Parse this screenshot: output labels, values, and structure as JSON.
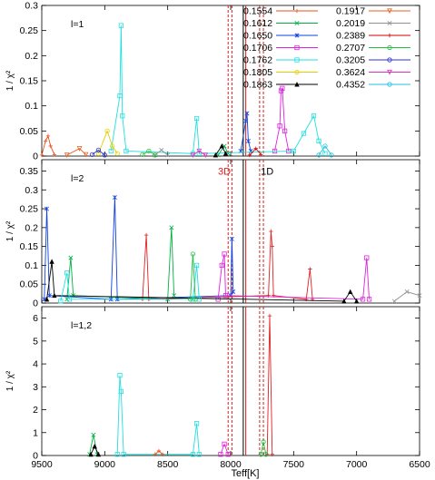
{
  "chart_data": [
    {
      "type": "line",
      "panel_label": "l=1",
      "ylabel": "1 / χ²",
      "ylim": [
        0,
        0.3
      ],
      "yticks": [
        "0",
        "0.05",
        "0.1",
        "0.15",
        "0.2",
        "0.25",
        "0.3"
      ],
      "xlim": [
        9500,
        6500
      ],
      "grid": false,
      "legend": "top-right",
      "series": [
        {
          "name": "0.1554",
          "color": "#e8501e",
          "marker": "+",
          "points": [
            [
              9500,
              0.002
            ],
            [
              9470,
              0.03
            ],
            [
              9450,
              0.04
            ],
            [
              9430,
              0.02
            ],
            [
              9400,
              0.003
            ]
          ]
        },
        {
          "name": "0.1612",
          "color": "#00b040",
          "marker": "x",
          "points": [
            [
              8100,
              0.002
            ],
            [
              8050,
              0.02
            ],
            [
              8020,
              0.005
            ]
          ]
        },
        {
          "name": "0.1650",
          "color": "#1040e0",
          "marker": "*",
          "points": [
            [
              7920,
              0.01
            ],
            [
              7880,
              0.07
            ],
            [
              7870,
              0.085
            ],
            [
              7860,
              0.03
            ],
            [
              7840,
              0.01
            ]
          ]
        },
        {
          "name": "0.1706",
          "color": "#e020e0",
          "marker": "square",
          "points": [
            [
              7650,
              0.01
            ],
            [
              7610,
              0.06
            ],
            [
              7600,
              0.13
            ],
            [
              7590,
              0.135
            ],
            [
              7570,
              0.05
            ],
            [
              7540,
              0.01
            ]
          ]
        },
        {
          "name": "0.1762",
          "color": "#20e0e0",
          "marker": "square",
          "points": [
            [
              8950,
              0.01
            ],
            [
              8880,
              0.12
            ],
            [
              8870,
              0.26
            ],
            [
              8860,
              0.08
            ],
            [
              8830,
              0.01
            ],
            [
              8300,
              0.005
            ],
            [
              8270,
              0.075
            ],
            [
              8250,
              0.005
            ],
            [
              7500,
              0.01
            ],
            [
              7420,
              0.045
            ],
            [
              7340,
              0.08
            ],
            [
              7300,
              0.03
            ],
            [
              7250,
              0.005
            ]
          ]
        },
        {
          "name": "0.1805",
          "color": "#e0d000",
          "marker": "circle",
          "points": [
            [
              9050,
              0.005
            ],
            [
              8980,
              0.05
            ],
            [
              8940,
              0.02
            ],
            [
              8900,
              0.005
            ]
          ]
        },
        {
          "name": "0.1863",
          "color": "#000000",
          "marker": "triangle",
          "points": [
            [
              8120,
              0.002
            ],
            [
              8070,
              0.02
            ],
            [
              8040,
              0.005
            ]
          ]
        },
        {
          "name": "0.1917",
          "color": "#e86020",
          "marker": "triangle-down",
          "points": [
            [
              9300,
              0.002
            ],
            [
              9200,
              0.015
            ],
            [
              9150,
              0.003
            ]
          ]
        },
        {
          "name": "0.2019",
          "color": "#909090",
          "marker": "x",
          "points": [
            [
              8600,
              0.002
            ],
            [
              8550,
              0.012
            ],
            [
              8500,
              0.002
            ]
          ]
        },
        {
          "name": "0.2389",
          "color": "#d00000",
          "marker": "+",
          "points": [
            [
              7850,
              0.002
            ],
            [
              7800,
              0.015
            ],
            [
              7760,
              0.003
            ]
          ]
        },
        {
          "name": "0.2707",
          "color": "#20c040",
          "marker": "circle",
          "points": [
            [
              8700,
              0.003
            ],
            [
              8650,
              0.01
            ],
            [
              8600,
              0.002
            ]
          ]
        },
        {
          "name": "0.3205",
          "color": "#3030d0",
          "marker": "circle",
          "points": [
            [
              9100,
              0.003
            ],
            [
              9050,
              0.012
            ],
            [
              9000,
              0.002
            ]
          ]
        },
        {
          "name": "0.3624",
          "color": "#e030c0",
          "marker": "triangle-down",
          "points": [
            [
              8300,
              0.002
            ],
            [
              8250,
              0.01
            ],
            [
              8200,
              0.002
            ]
          ]
        },
        {
          "name": "0.4352",
          "color": "#20c0e0",
          "marker": "circle",
          "points": [
            [
              7300,
              0.002
            ],
            [
              7250,
              0.02
            ],
            [
              7200,
              0.002
            ]
          ]
        }
      ]
    },
    {
      "type": "line",
      "panel_label": "l=2",
      "ylabel": "1 / χ²",
      "ylim": [
        0,
        0.38
      ],
      "yticks": [
        "0",
        "0.05",
        "0.1",
        "0.15",
        "0.2",
        "0.25",
        "0.3",
        "0.35"
      ],
      "xlim": [
        9500,
        6500
      ],
      "annotations": [
        {
          "text": "3D",
          "color": "#e02020",
          "x": 8050,
          "y": 0.35
        },
        {
          "text": "1D",
          "color": "#000000",
          "x": 7710,
          "y": 0.35
        }
      ],
      "series": [
        {
          "name": "0.1650",
          "color": "#1040e0",
          "marker": "*",
          "points": [
            [
              9480,
              0.01
            ],
            [
              9460,
              0.25
            ],
            [
              9440,
              0.02
            ],
            [
              8950,
              0.01
            ],
            [
              8920,
              0.28
            ],
            [
              8900,
              0.01
            ],
            [
              8000,
              0.02
            ],
            [
              7990,
              0.17
            ],
            [
              7980,
              0.03
            ]
          ]
        },
        {
          "name": "0.1612",
          "color": "#00b040",
          "marker": "x",
          "points": [
            [
              9300,
              0.01
            ],
            [
              9270,
              0.12
            ],
            [
              9250,
              0.02
            ],
            [
              8500,
              0.01
            ],
            [
              8470,
              0.2
            ],
            [
              8450,
              0.02
            ]
          ]
        },
        {
          "name": "0.2389",
          "color": "#e02020",
          "marker": "+",
          "points": [
            [
              8700,
              0.01
            ],
            [
              8670,
              0.18
            ],
            [
              8650,
              0.01
            ],
            [
              7700,
              0.02
            ],
            [
              7680,
              0.19
            ],
            [
              7670,
              0.15
            ],
            [
              7660,
              0.02
            ],
            [
              7400,
              0.01
            ],
            [
              7370,
              0.09
            ],
            [
              7350,
              0.01
            ]
          ]
        },
        {
          "name": "0.1706",
          "color": "#e020e0",
          "marker": "square",
          "points": [
            [
              8100,
              0.01
            ],
            [
              8070,
              0.1
            ],
            [
              8050,
              0.13
            ],
            [
              8040,
              0.02
            ],
            [
              6950,
              0.01
            ],
            [
              6920,
              0.12
            ],
            [
              6900,
              0.01
            ]
          ]
        },
        {
          "name": "0.1863",
          "color": "#000000",
          "marker": "triangle",
          "points": [
            [
              9460,
              0.01
            ],
            [
              9420,
              0.11
            ],
            [
              9400,
              0.02
            ],
            [
              7100,
              0.005
            ],
            [
              7050,
              0.03
            ],
            [
              7000,
              0.005
            ]
          ]
        },
        {
          "name": "0.1762",
          "color": "#20e0e0",
          "marker": "square",
          "points": [
            [
              9350,
              0.005
            ],
            [
              9300,
              0.08
            ],
            [
              9280,
              0.01
            ],
            [
              8300,
              0.01
            ],
            [
              8270,
              0.1
            ],
            [
              8250,
              0.01
            ]
          ]
        },
        {
          "name": "0.2019",
          "color": "#909090",
          "marker": "x",
          "points": [
            [
              6700,
              0.005
            ],
            [
              6600,
              0.03
            ],
            [
              6500,
              0.02
            ]
          ]
        },
        {
          "name": "0.2707",
          "color": "#20c040",
          "marker": "circle",
          "points": [
            [
              8320,
              0.01
            ],
            [
              8300,
              0.13
            ],
            [
              8280,
              0.01
            ]
          ]
        }
      ]
    },
    {
      "type": "line",
      "panel_label": "l=1,2",
      "ylabel": "1 / χ²",
      "ylim": [
        0,
        6.5
      ],
      "yticks": [
        "0",
        "1",
        "2",
        "3",
        "4",
        "5",
        "6"
      ],
      "xlim": [
        9500,
        6500
      ],
      "xlabel": "Teff[K]",
      "xticks": [
        "9500",
        "9000",
        "8500",
        "8000",
        "7500",
        "7000",
        "6500"
      ],
      "series": [
        {
          "name": "0.2389",
          "color": "#e02020",
          "marker": "+",
          "points": [
            [
              7710,
              0.05
            ],
            [
              7690,
              6.1
            ],
            [
              7670,
              0.05
            ]
          ]
        },
        {
          "name": "0.1762",
          "color": "#20e0e0",
          "marker": "square",
          "points": [
            [
              8900,
              0.05
            ],
            [
              8880,
              3.5
            ],
            [
              8870,
              2.8
            ],
            [
              8850,
              0.05
            ],
            [
              8300,
              0.05
            ],
            [
              8270,
              1.4
            ],
            [
              8250,
              0.05
            ]
          ]
        },
        {
          "name": "0.1612",
          "color": "#00b040",
          "marker": "x",
          "points": [
            [
              9120,
              0.05
            ],
            [
              9090,
              0.9
            ],
            [
              9060,
              0.05
            ]
          ]
        },
        {
          "name": "0.1863",
          "color": "#000000",
          "marker": "triangle",
          "points": [
            [
              9110,
              0.05
            ],
            [
              9080,
              0.4
            ],
            [
              9050,
              0.05
            ]
          ]
        },
        {
          "name": "0.1706",
          "color": "#e020e0",
          "marker": "square",
          "points": [
            [
              8080,
              0.05
            ],
            [
              8050,
              0.5
            ],
            [
              8020,
              0.05
            ]
          ]
        },
        {
          "name": "0.2707",
          "color": "#20c040",
          "marker": "circle",
          "points": [
            [
              7760,
              0.05
            ],
            [
              7740,
              0.6
            ],
            [
              7720,
              0.05
            ]
          ]
        },
        {
          "name": "0.1554",
          "color": "#e8501e",
          "marker": "+",
          "points": [
            [
              8600,
              0.05
            ],
            [
              8570,
              0.2
            ],
            [
              8540,
              0.05
            ]
          ]
        }
      ]
    }
  ],
  "vlines": {
    "dashed_red": [
      8020,
      7770
    ],
    "dashed_red_offset": [
      7990,
      7740
    ],
    "solid": [
      7900,
      7880
    ]
  }
}
